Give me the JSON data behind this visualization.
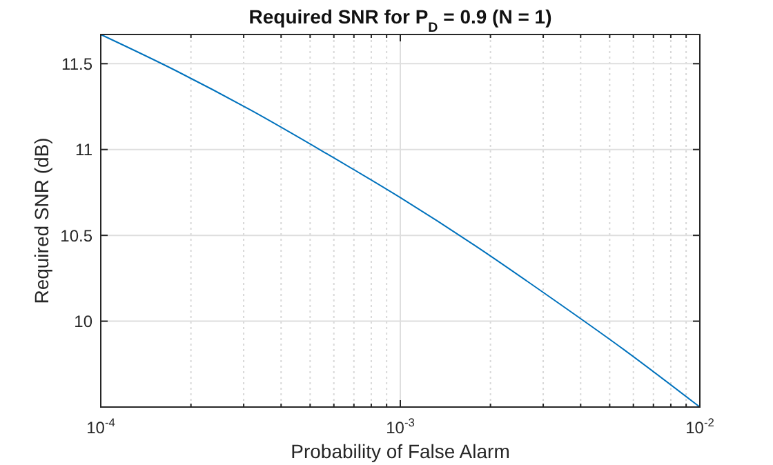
{
  "chart_data": {
    "type": "line",
    "title": "Required SNR for P$_{D}$ = 0.9 (N = 1)",
    "xlabel": "Probability of False Alarm",
    "ylabel": "Required SNR (dB)",
    "log": "x",
    "grid": true,
    "line_style": "solid",
    "x": [
      0.0001,
      0.0001778,
      0.0003162,
      0.0005623,
      0.001,
      0.001778,
      0.003162,
      0.005623,
      0.01
    ],
    "series": [
      {
        "color": "#0072bd",
        "values": [
          11.67,
          11.46,
          11.23,
          10.98,
          10.72,
          10.44,
          10.14,
          9.83,
          9.5
        ]
      }
    ],
    "xlim": [
      0.0001,
      0.01
    ],
    "xticks": [
      {
        "value": 0.0001,
        "label": "10$^{-4}$"
      },
      {
        "value": 0.001,
        "label": "10$^{-3}$"
      },
      {
        "value": 0.01,
        "label": "10$^{-2}$"
      }
    ],
    "ylim": [
      9.5,
      11.67
    ],
    "yticks": [
      10,
      10.5,
      11,
      11.5
    ]
  }
}
